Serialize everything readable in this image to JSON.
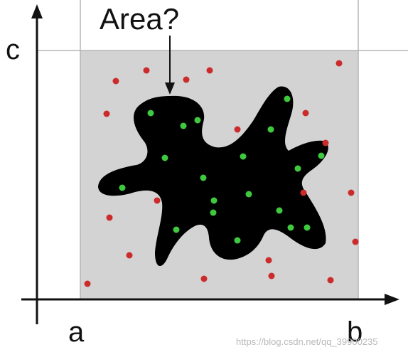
{
  "labels": {
    "question": "Area?",
    "y_bound": "c",
    "x_lower": "a",
    "x_upper": "b"
  },
  "watermark": "https://blog.csdn.net/qq_39900235",
  "colors": {
    "background": "#ffffff",
    "sampling_region": "#d3d3d3",
    "guide_lines": "#b5b5b5",
    "shape": "#000000",
    "point_inside": "#3fc93f",
    "point_outside": "#cc2b2b",
    "axes": "#111111"
  },
  "points": {
    "inside_count": 18,
    "outside_count": 20
  }
}
